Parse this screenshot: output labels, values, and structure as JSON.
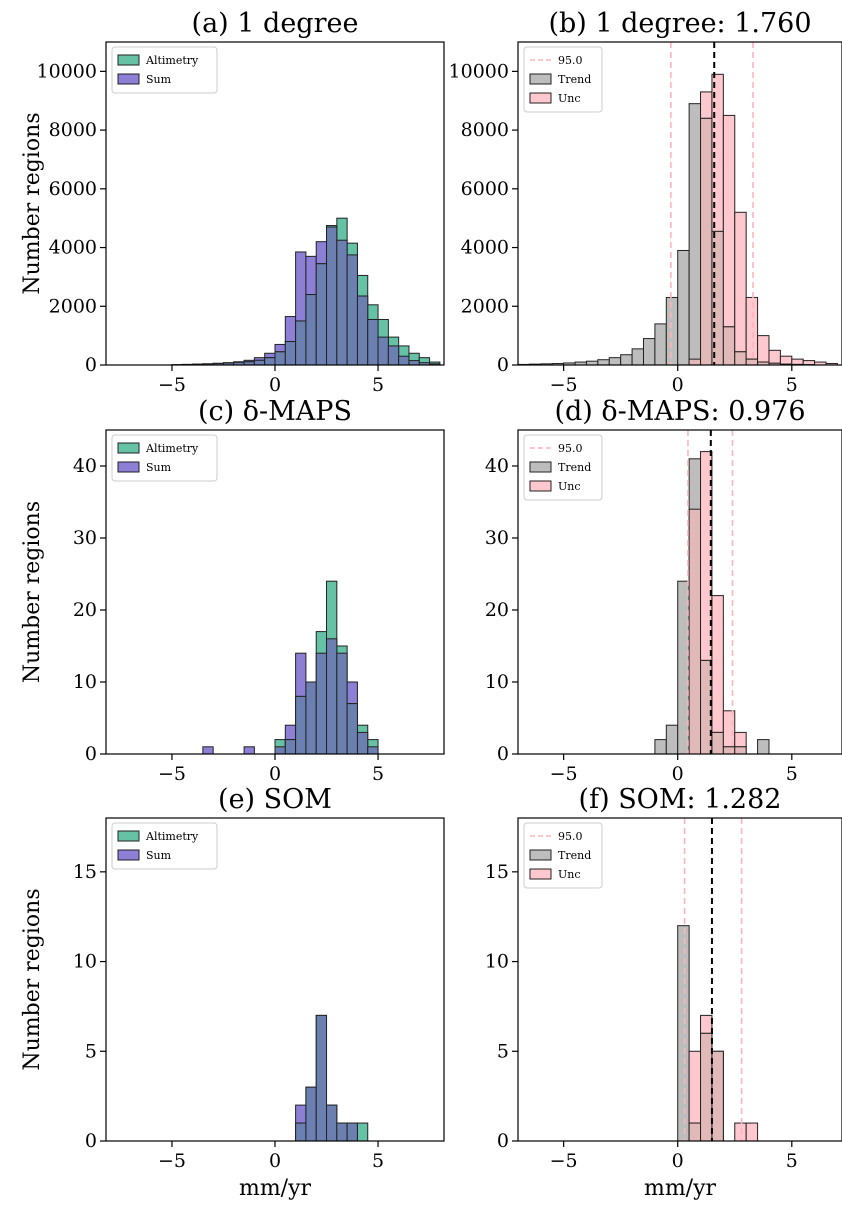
{
  "colors": {
    "altimetry": "#66c2a5",
    "sum": "#8d7fd6",
    "overlap": "#6b7fb0",
    "trend": "#bdbdbd",
    "unc": "#ffc8cf",
    "unc_overlap": "#e2b9b9",
    "ci_line": "#ffb3bd",
    "mean_line": "#000000"
  },
  "chart_data": [
    {
      "id": "a",
      "type": "bar",
      "title": "(a)  1 degree",
      "xlabel": "",
      "ylabel": "Number regions",
      "xlim": [
        -8.2,
        8.2
      ],
      "ylim": [
        0,
        11000
      ],
      "xticks": [
        -5,
        0,
        5
      ],
      "yticks": [
        0,
        2000,
        4000,
        6000,
        8000,
        10000
      ],
      "bin_start": -8.0,
      "bin_width": 0.5,
      "legend": {
        "position": "upper-left",
        "entries": [
          "Altimetry",
          "Sum"
        ]
      },
      "series": [
        {
          "name": "Altimetry",
          "values": [
            0,
            0,
            0,
            0,
            0,
            0,
            10,
            20,
            30,
            40,
            50,
            70,
            90,
            110,
            160,
            250,
            450,
            800,
            1500,
            2400,
            3450,
            4750,
            5000,
            4150,
            3050,
            2050,
            1550,
            950,
            650,
            400,
            250,
            100
          ]
        },
        {
          "name": "Sum",
          "values": [
            0,
            0,
            0,
            0,
            0,
            0,
            10,
            20,
            30,
            40,
            60,
            80,
            110,
            160,
            250,
            400,
            700,
            1650,
            3850,
            3700,
            4200,
            4700,
            4250,
            3750,
            2350,
            1550,
            950,
            650,
            300,
            150,
            80,
            40
          ]
        }
      ]
    },
    {
      "id": "b",
      "type": "bar",
      "title": "(b)  1 degree: 1.760",
      "xlabel": "",
      "ylabel": "",
      "xlim": [
        -7,
        7.2
      ],
      "ylim": [
        0,
        11000
      ],
      "xticks": [
        -5,
        0,
        5
      ],
      "yticks": [
        0,
        2000,
        4000,
        6000,
        8000,
        10000
      ],
      "bin_start": -7.0,
      "bin_width": 0.5,
      "vlines": {
        "ci": [
          -0.3,
          3.3
        ],
        "mean": 1.6
      },
      "legend": {
        "position": "upper-left",
        "entries": [
          "95.0",
          "Trend",
          "Unc"
        ]
      },
      "series": [
        {
          "name": "Trend",
          "values": [
            20,
            30,
            40,
            50,
            70,
            100,
            130,
            180,
            250,
            350,
            550,
            900,
            1400,
            2300,
            3900,
            8900,
            8400,
            4550,
            1300,
            450,
            200,
            100,
            60,
            30,
            20,
            10,
            0,
            0
          ]
        },
        {
          "name": "Unc",
          "values": [
            0,
            0,
            0,
            0,
            0,
            0,
            0,
            0,
            0,
            0,
            0,
            0,
            0,
            0,
            0,
            200,
            9300,
            9900,
            8500,
            5200,
            2300,
            1000,
            500,
            300,
            200,
            150,
            100,
            50
          ]
        }
      ]
    },
    {
      "id": "c",
      "type": "bar",
      "title": "(c)  δ-MAPS",
      "xlabel": "",
      "ylabel": "Number regions",
      "xlim": [
        -8.2,
        8.2
      ],
      "ylim": [
        0,
        45
      ],
      "xticks": [
        -5,
        0,
        5
      ],
      "yticks": [
        0,
        10,
        20,
        30,
        40
      ],
      "bin_start": -8.0,
      "bin_width": 0.5,
      "legend": {
        "position": "upper-left",
        "entries": [
          "Altimetry",
          "Sum"
        ]
      },
      "series": [
        {
          "name": "Altimetry",
          "values": [
            0,
            0,
            0,
            0,
            0,
            0,
            0,
            0,
            0,
            0,
            0,
            0,
            0,
            0,
            0,
            0,
            2,
            2,
            8,
            10,
            17,
            24,
            15,
            7,
            4,
            2,
            0,
            0,
            0,
            0,
            0,
            0
          ]
        },
        {
          "name": "Sum",
          "values": [
            0,
            0,
            0,
            0,
            0,
            0,
            0,
            0,
            0,
            1,
            0,
            0,
            0,
            1,
            0,
            0,
            1,
            4,
            14,
            10,
            14,
            16,
            14,
            10,
            3,
            1,
            0,
            0,
            0,
            0,
            0,
            0
          ]
        }
      ]
    },
    {
      "id": "d",
      "type": "bar",
      "title": "(d)  δ-MAPS: 0.976",
      "xlabel": "",
      "ylabel": "",
      "xlim": [
        -7,
        7.2
      ],
      "ylim": [
        0,
        45
      ],
      "xticks": [
        -5,
        0,
        5
      ],
      "yticks": [
        0,
        10,
        20,
        30,
        40
      ],
      "bin_start": -7.0,
      "bin_width": 0.5,
      "vlines": {
        "ci": [
          0.45,
          2.4
        ],
        "mean": 1.45
      },
      "legend": {
        "position": "upper-left",
        "entries": [
          "95.0",
          "Trend",
          "Unc"
        ]
      },
      "series": [
        {
          "name": "Trend",
          "values": [
            0,
            0,
            0,
            0,
            0,
            0,
            0,
            0,
            0,
            0,
            0,
            0,
            2,
            4,
            24,
            41,
            13,
            3,
            1,
            1,
            0,
            2,
            0,
            0,
            0,
            0,
            0,
            0
          ]
        },
        {
          "name": "Unc",
          "values": [
            0,
            0,
            0,
            0,
            0,
            0,
            0,
            0,
            0,
            0,
            0,
            0,
            0,
            0,
            0,
            34,
            42,
            22,
            6,
            3,
            0,
            0,
            0,
            0,
            0,
            0,
            0,
            0
          ]
        }
      ]
    },
    {
      "id": "e",
      "type": "bar",
      "title": "(e)  SOM",
      "xlabel": "mm/yr",
      "ylabel": "Number regions",
      "xlim": [
        -8.2,
        8.2
      ],
      "ylim": [
        0,
        18
      ],
      "xticks": [
        -5,
        0,
        5
      ],
      "yticks": [
        0,
        5,
        10,
        15
      ],
      "bin_start": -8.0,
      "bin_width": 0.5,
      "legend": {
        "position": "upper-left",
        "entries": [
          "Altimetry",
          "Sum"
        ]
      },
      "series": [
        {
          "name": "Altimetry",
          "values": [
            0,
            0,
            0,
            0,
            0,
            0,
            0,
            0,
            0,
            0,
            0,
            0,
            0,
            0,
            0,
            0,
            0,
            0,
            1,
            3,
            7,
            2,
            1,
            1,
            1,
            0,
            0,
            0,
            0,
            0,
            0,
            0
          ]
        },
        {
          "name": "Sum",
          "values": [
            0,
            0,
            0,
            0,
            0,
            0,
            0,
            0,
            0,
            0,
            0,
            0,
            0,
            0,
            0,
            0,
            0,
            0,
            2,
            3,
            7,
            2,
            1,
            1,
            0,
            0,
            0,
            0,
            0,
            0,
            0,
            0
          ]
        }
      ]
    },
    {
      "id": "f",
      "type": "bar",
      "title": "(f)  SOM: 1.282",
      "xlabel": "mm/yr",
      "ylabel": "",
      "xlim": [
        -7,
        7.2
      ],
      "ylim": [
        0,
        18
      ],
      "xticks": [
        -5,
        0,
        5
      ],
      "yticks": [
        0,
        5,
        10,
        15
      ],
      "bin_start": -7.0,
      "bin_width": 0.5,
      "vlines": {
        "ci": [
          0.3,
          2.8
        ],
        "mean": 1.5
      },
      "legend": {
        "position": "upper-left",
        "entries": [
          "95.0",
          "Trend",
          "Unc"
        ]
      },
      "series": [
        {
          "name": "Trend",
          "values": [
            0,
            0,
            0,
            0,
            0,
            0,
            0,
            0,
            0,
            0,
            0,
            0,
            0,
            0,
            12,
            1,
            6,
            5,
            0,
            0,
            0,
            0,
            0,
            0,
            0,
            0,
            0,
            0
          ]
        },
        {
          "name": "Unc",
          "values": [
            0,
            0,
            0,
            0,
            0,
            0,
            0,
            0,
            0,
            0,
            0,
            0,
            0,
            0,
            0,
            5,
            7,
            5,
            0,
            1,
            1,
            0,
            0,
            0,
            0,
            0,
            0,
            0
          ]
        }
      ]
    }
  ]
}
